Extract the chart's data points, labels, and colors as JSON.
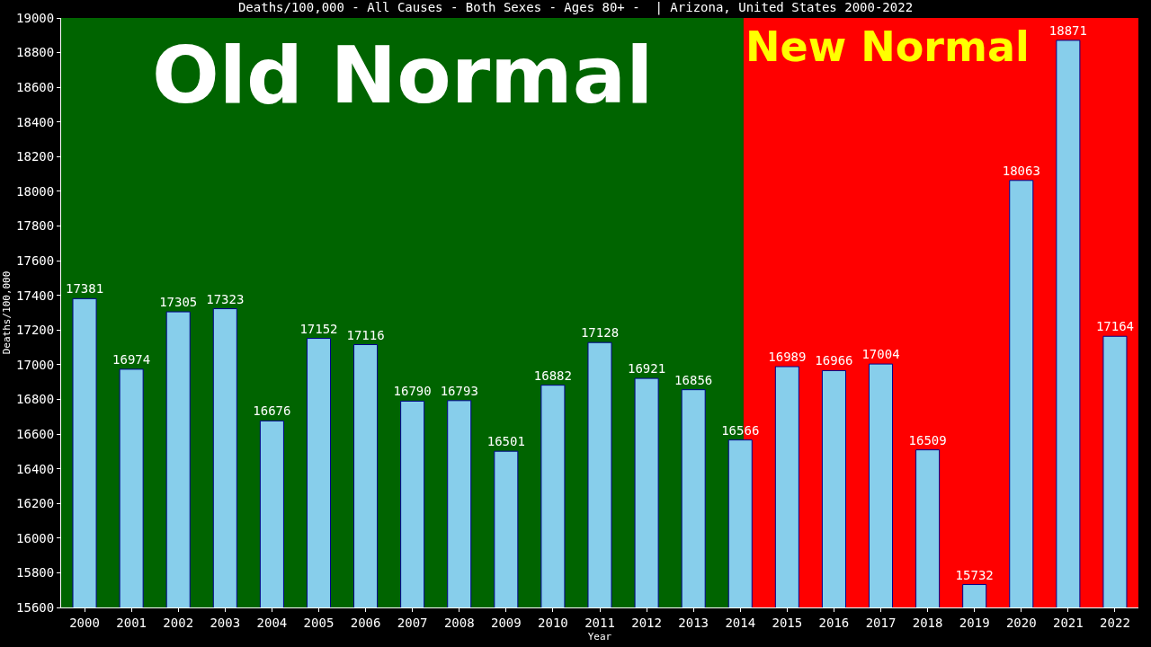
{
  "chart_data": {
    "type": "bar",
    "title": "Deaths/100,000 - All Causes - Both Sexes - Ages 80+ -  | Arizona, United States 2000-2022",
    "xlabel": "Year",
    "ylabel": "Deaths/100,000",
    "categories": [
      "2000",
      "2001",
      "2002",
      "2003",
      "2004",
      "2005",
      "2006",
      "2007",
      "2008",
      "2009",
      "2010",
      "2011",
      "2012",
      "2013",
      "2014",
      "2015",
      "2016",
      "2017",
      "2018",
      "2019",
      "2020",
      "2021",
      "2022"
    ],
    "series": [
      {
        "color": "#87ceeb",
        "values": [
          17381,
          16974,
          17305,
          17323,
          16676,
          17152,
          17116,
          16790,
          16793,
          16501,
          16882,
          17128,
          16921,
          16856,
          16566,
          16989,
          16966,
          17004,
          16509,
          15732,
          18063,
          18871,
          17164
        ]
      }
    ],
    "data_labels": true,
    "ylim": [
      15600,
      19000
    ],
    "yticks": [
      15600,
      15800,
      16000,
      16200,
      16400,
      16600,
      16800,
      17000,
      17200,
      17400,
      17600,
      17800,
      18000,
      18200,
      18400,
      18600,
      18800,
      19000
    ],
    "grid": false,
    "bands": [
      {
        "axis": "x",
        "from": "2000",
        "to": "2014",
        "label": "Old Normal",
        "color": "#006400"
      },
      {
        "axis": "x",
        "from": "2014",
        "to": "2022",
        "label": "New Normal",
        "color": "#ff0000"
      }
    ]
  }
}
